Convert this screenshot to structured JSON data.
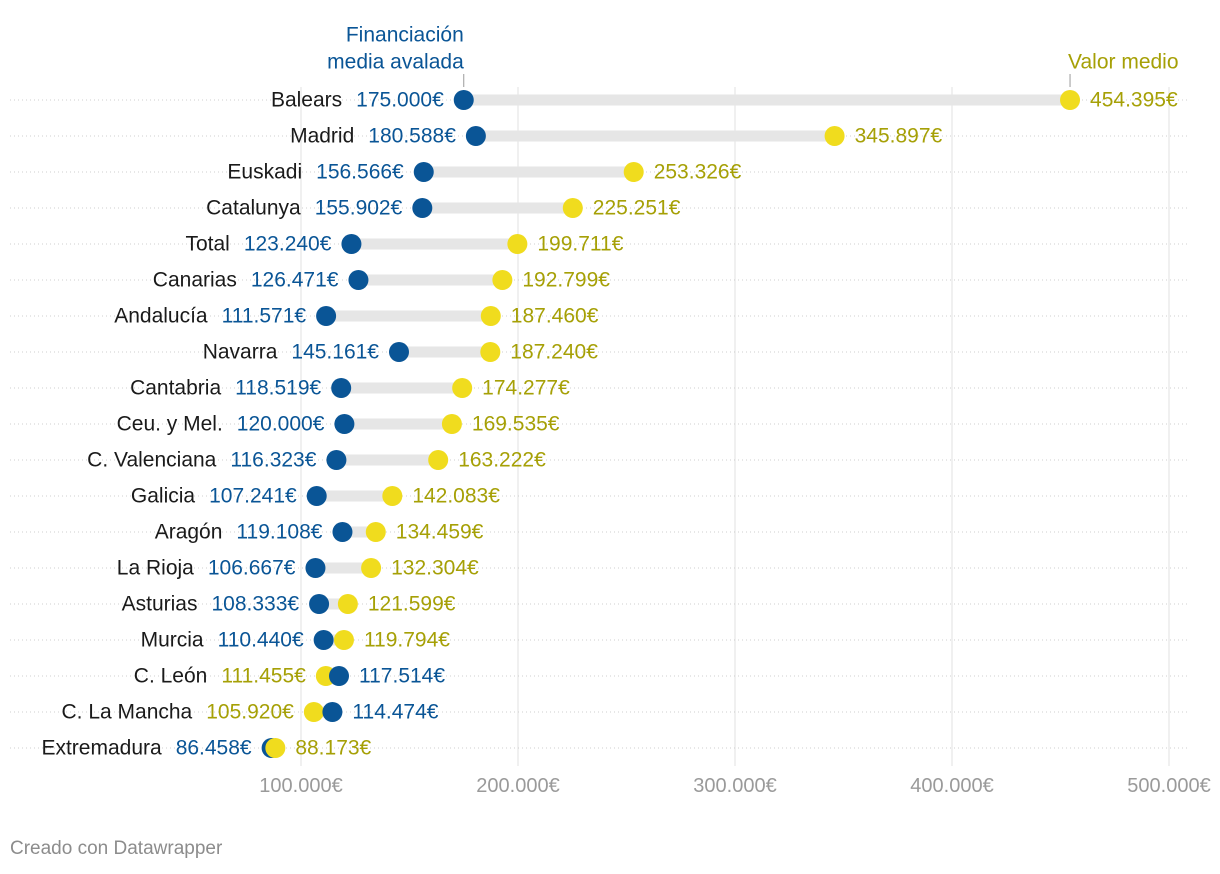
{
  "chart_data": {
    "type": "dot",
    "xlim": [
      0,
      510000
    ],
    "ticks": [
      {
        "value": 100000,
        "label": "100.000€"
      },
      {
        "value": 200000,
        "label": "200.000€"
      },
      {
        "value": 300000,
        "label": "300.000€"
      },
      {
        "value": 400000,
        "label": "400.000€"
      },
      {
        "value": 500000,
        "label": "500.000€"
      }
    ],
    "series_labels": {
      "financiacion": [
        "Financiación",
        "media avalada"
      ],
      "valor": [
        "Valor medio"
      ]
    },
    "colors": {
      "financiacion": "#0a5596",
      "valor": "#f0dc1e",
      "valor_text": "#a6a006",
      "range": "#e6e6e6",
      "grid": "#e0e0e0",
      "axis_text": "#9a9a9a"
    },
    "rows": [
      {
        "region": "Balears",
        "financiacion": 175000,
        "financiacion_label": "175.000€",
        "valor": 454395,
        "valor_label": "454.395€"
      },
      {
        "region": "Madrid",
        "financiacion": 180588,
        "financiacion_label": "180.588€",
        "valor": 345897,
        "valor_label": "345.897€"
      },
      {
        "region": "Euskadi",
        "financiacion": 156566,
        "financiacion_label": "156.566€",
        "valor": 253326,
        "valor_label": "253.326€"
      },
      {
        "region": "Catalunya",
        "financiacion": 155902,
        "financiacion_label": "155.902€",
        "valor": 225251,
        "valor_label": "225.251€"
      },
      {
        "region": "Total",
        "financiacion": 123240,
        "financiacion_label": "123.240€",
        "valor": 199711,
        "valor_label": "199.711€"
      },
      {
        "region": "Canarias",
        "financiacion": 126471,
        "financiacion_label": "126.471€",
        "valor": 192799,
        "valor_label": "192.799€"
      },
      {
        "region": "Andalucía",
        "financiacion": 111571,
        "financiacion_label": "111.571€",
        "valor": 187460,
        "valor_label": "187.460€"
      },
      {
        "region": "Navarra",
        "financiacion": 145161,
        "financiacion_label": "145.161€",
        "valor": 187240,
        "valor_label": "187.240€"
      },
      {
        "region": "Cantabria",
        "financiacion": 118519,
        "financiacion_label": "118.519€",
        "valor": 174277,
        "valor_label": "174.277€"
      },
      {
        "region": "Ceu. y Mel.",
        "financiacion": 120000,
        "financiacion_label": "120.000€",
        "valor": 169535,
        "valor_label": "169.535€"
      },
      {
        "region": "C. Valenciana",
        "financiacion": 116323,
        "financiacion_label": "116.323€",
        "valor": 163222,
        "valor_label": "163.222€"
      },
      {
        "region": "Galicia",
        "financiacion": 107241,
        "financiacion_label": "107.241€",
        "valor": 142083,
        "valor_label": "142.083€"
      },
      {
        "region": "Aragón",
        "financiacion": 119108,
        "financiacion_label": "119.108€",
        "valor": 134459,
        "valor_label": "134.459€"
      },
      {
        "region": "La Rioja",
        "financiacion": 106667,
        "financiacion_label": "106.667€",
        "valor": 132304,
        "valor_label": "132.304€"
      },
      {
        "region": "Asturias",
        "financiacion": 108333,
        "financiacion_label": "108.333€",
        "valor": 121599,
        "valor_label": "121.599€"
      },
      {
        "region": "Murcia",
        "financiacion": 110440,
        "financiacion_label": "110.440€",
        "valor": 119794,
        "valor_label": "119.794€"
      },
      {
        "region": "C. León",
        "financiacion": 117514,
        "financiacion_label": "117.514€",
        "valor": 111455,
        "valor_label": "111.455€"
      },
      {
        "region": "C. La Mancha",
        "financiacion": 114474,
        "financiacion_label": "114.474€",
        "valor": 105920,
        "valor_label": "105.920€"
      },
      {
        "region": "Extremadura",
        "financiacion": 86458,
        "financiacion_label": "86.458€",
        "valor": 88173,
        "valor_label": "88.173€"
      }
    ]
  },
  "footer": "Creado con Datawrapper"
}
